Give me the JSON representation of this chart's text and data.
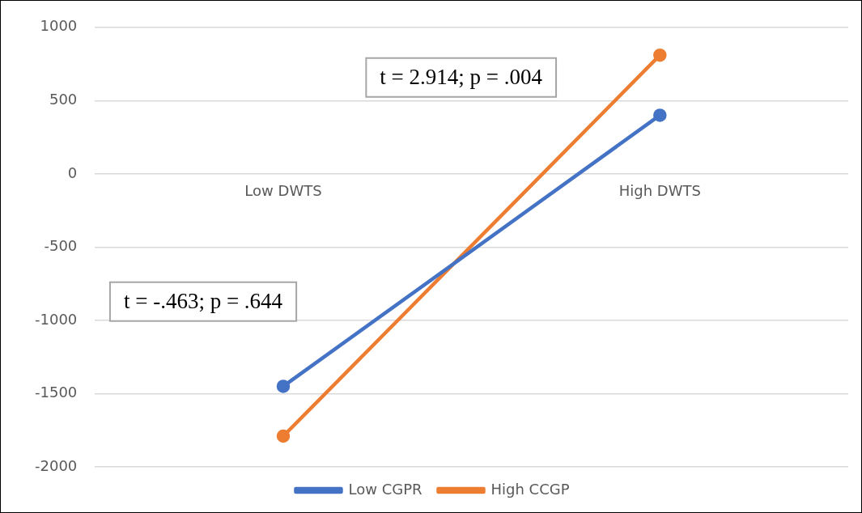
{
  "chart_data": {
    "type": "line",
    "categories": [
      "Low DWTS",
      "High DWTS"
    ],
    "series": [
      {
        "name": "Low CGPR",
        "color": "#4472c4",
        "values": [
          -1450,
          400
        ]
      },
      {
        "name": "High CCGP",
        "color": "#ed7d31",
        "values": [
          -1790,
          810
        ]
      }
    ],
    "ylim": [
      -2000,
      1000
    ],
    "yticks": [
      -2000,
      -1500,
      -1000,
      -500,
      0,
      500,
      1000
    ],
    "grid": "y",
    "legend": "bottom",
    "marker": "circle",
    "annotations": [
      "t = 2.914; p = .004",
      "t = -.463; p = .644"
    ]
  }
}
